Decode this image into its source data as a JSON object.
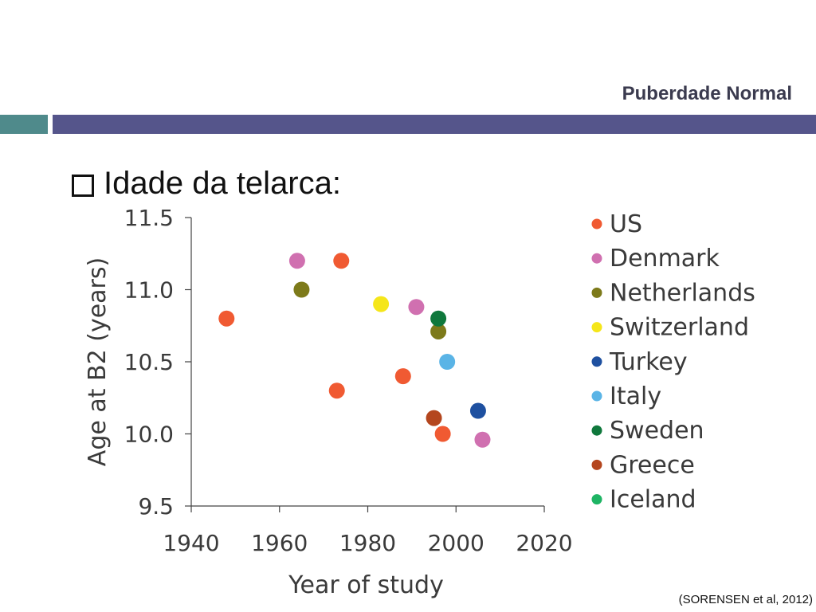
{
  "header": {
    "title": "Puberdade  Normal"
  },
  "bullet": {
    "text": "Idade da telarca:"
  },
  "citation": "(SORENSEN et al, 2012)",
  "colors": {
    "US": "#f05a32",
    "Denmark": "#d070b0",
    "Netherlands": "#7d7a1a",
    "Switzerland": "#f5e61a",
    "Turkey": "#1e50a0",
    "Italy": "#5ab4e6",
    "Sweden": "#0f783c",
    "Greece": "#b4461e",
    "Iceland": "#1eb464"
  },
  "chart_data": {
    "type": "scatter",
    "xlabel": "Year of study",
    "ylabel": "Age at B2 (years)",
    "xlim": [
      1940,
      2020
    ],
    "ylim": [
      9.5,
      11.5
    ],
    "xticks": [
      "1940",
      "1960",
      "1980",
      "2000",
      "2020"
    ],
    "yticks": [
      "9.5",
      "10.0",
      "10.5",
      "11.0",
      "11.5"
    ],
    "legend_position": "right",
    "grid": false,
    "series": [
      {
        "name": "US",
        "points": [
          [
            1948,
            10.8
          ],
          [
            1974,
            11.2
          ],
          [
            1973,
            10.3
          ],
          [
            1988,
            10.4
          ],
          [
            1997,
            10.0
          ]
        ]
      },
      {
        "name": "Denmark",
        "points": [
          [
            1964,
            11.2
          ],
          [
            1991,
            10.88
          ],
          [
            2006,
            9.96
          ]
        ]
      },
      {
        "name": "Netherlands",
        "points": [
          [
            1965,
            11.0
          ],
          [
            1996,
            10.71
          ]
        ]
      },
      {
        "name": "Switzerland",
        "points": [
          [
            1983,
            10.9
          ]
        ]
      },
      {
        "name": "Turkey",
        "points": [
          [
            2005,
            10.16
          ]
        ]
      },
      {
        "name": "Italy",
        "points": [
          [
            1998,
            10.5
          ]
        ]
      },
      {
        "name": "Sweden",
        "points": [
          [
            1996,
            10.8
          ]
        ]
      },
      {
        "name": "Greece",
        "points": [
          [
            1995,
            10.11
          ]
        ]
      },
      {
        "name": "Iceland",
        "points": []
      }
    ]
  }
}
